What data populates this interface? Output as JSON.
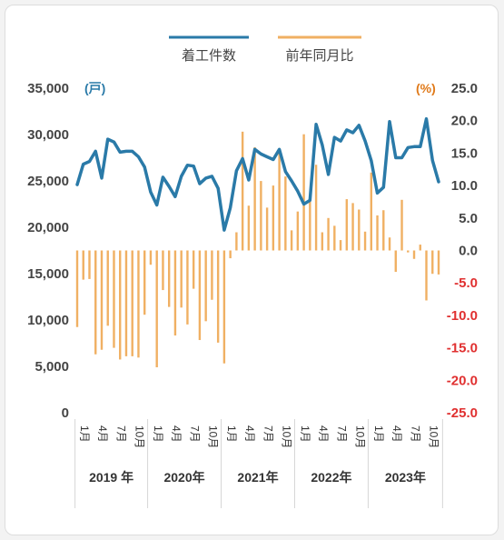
{
  "chart_data": {
    "type": "line+bar",
    "legend": [
      {
        "label": "着工件数",
        "color": "#2a7aa8",
        "kind": "line"
      },
      {
        "label": "前年同月比",
        "color": "#f0b063",
        "kind": "bar"
      }
    ],
    "left_axis": {
      "unit": "(戸)",
      "ticks": [
        "35,000",
        "30,000",
        "25,000",
        "20,000",
        "15,000",
        "10,000",
        "5,000",
        "0"
      ],
      "range": [
        0,
        35000
      ]
    },
    "right_axis": {
      "unit": "(%)",
      "ticks": [
        "25.0",
        "20.0",
        "15.0",
        "10.0",
        "5.0",
        "0.0",
        "-5.0",
        "-10.0",
        "-15.0",
        "-20.0",
        "-25.0"
      ],
      "range": [
        -25,
        25
      ]
    },
    "x_axis": {
      "month_labels": [
        "1月",
        "4月",
        "7月",
        "10月"
      ],
      "years": [
        "2019 年",
        "2020年",
        "2021年",
        "2022年",
        "2023年"
      ]
    },
    "series": [
      {
        "name": "着工件数",
        "color": "#2a7aa8",
        "values": [
          24600,
          26800,
          27100,
          28200,
          25300,
          29500,
          29200,
          28100,
          28200,
          28200,
          27600,
          26500,
          23800,
          22400,
          25400,
          24400,
          23300,
          25500,
          26700,
          26600,
          24700,
          25300,
          25500,
          24200,
          19700,
          22100,
          26100,
          27400,
          25100,
          28400,
          27900,
          27600,
          27300,
          28400,
          26000,
          25000,
          23900,
          22500,
          22900,
          31100,
          28900,
          25700,
          29700,
          29300,
          30500,
          30200,
          31000,
          29300,
          27200,
          23700,
          24300,
          31400,
          27500,
          27500,
          28600,
          28700,
          28700,
          31700,
          27200,
          24900
        ]
      },
      {
        "name": "前年同月比",
        "color": "#f0b063",
        "values": [
          -11.8,
          -4.5,
          -4.4,
          -16.0,
          -15.3,
          -11.6,
          -15.0,
          -16.8,
          -16.3,
          -16.3,
          -16.5,
          -9.9,
          -2.2,
          -18.0,
          -6.1,
          -8.7,
          -13.1,
          -8.8,
          -11.4,
          -5.9,
          -13.8,
          -10.9,
          -7.6,
          -14.2,
          -17.4,
          -1.2,
          2.8,
          18.3,
          6.9,
          15.9,
          10.7,
          6.6,
          10.0,
          15.4,
          11.4,
          3.1,
          6.0,
          17.9,
          7.7,
          13.2,
          2.8,
          5.0,
          3.8,
          1.6,
          7.9,
          7.3,
          6.3,
          2.9,
          12.0,
          5.4,
          6.2,
          2.0,
          -3.3,
          7.8,
          -0.3,
          -1.3,
          0.9,
          -7.7,
          -3.6,
          -3.7
        ]
      }
    ]
  }
}
